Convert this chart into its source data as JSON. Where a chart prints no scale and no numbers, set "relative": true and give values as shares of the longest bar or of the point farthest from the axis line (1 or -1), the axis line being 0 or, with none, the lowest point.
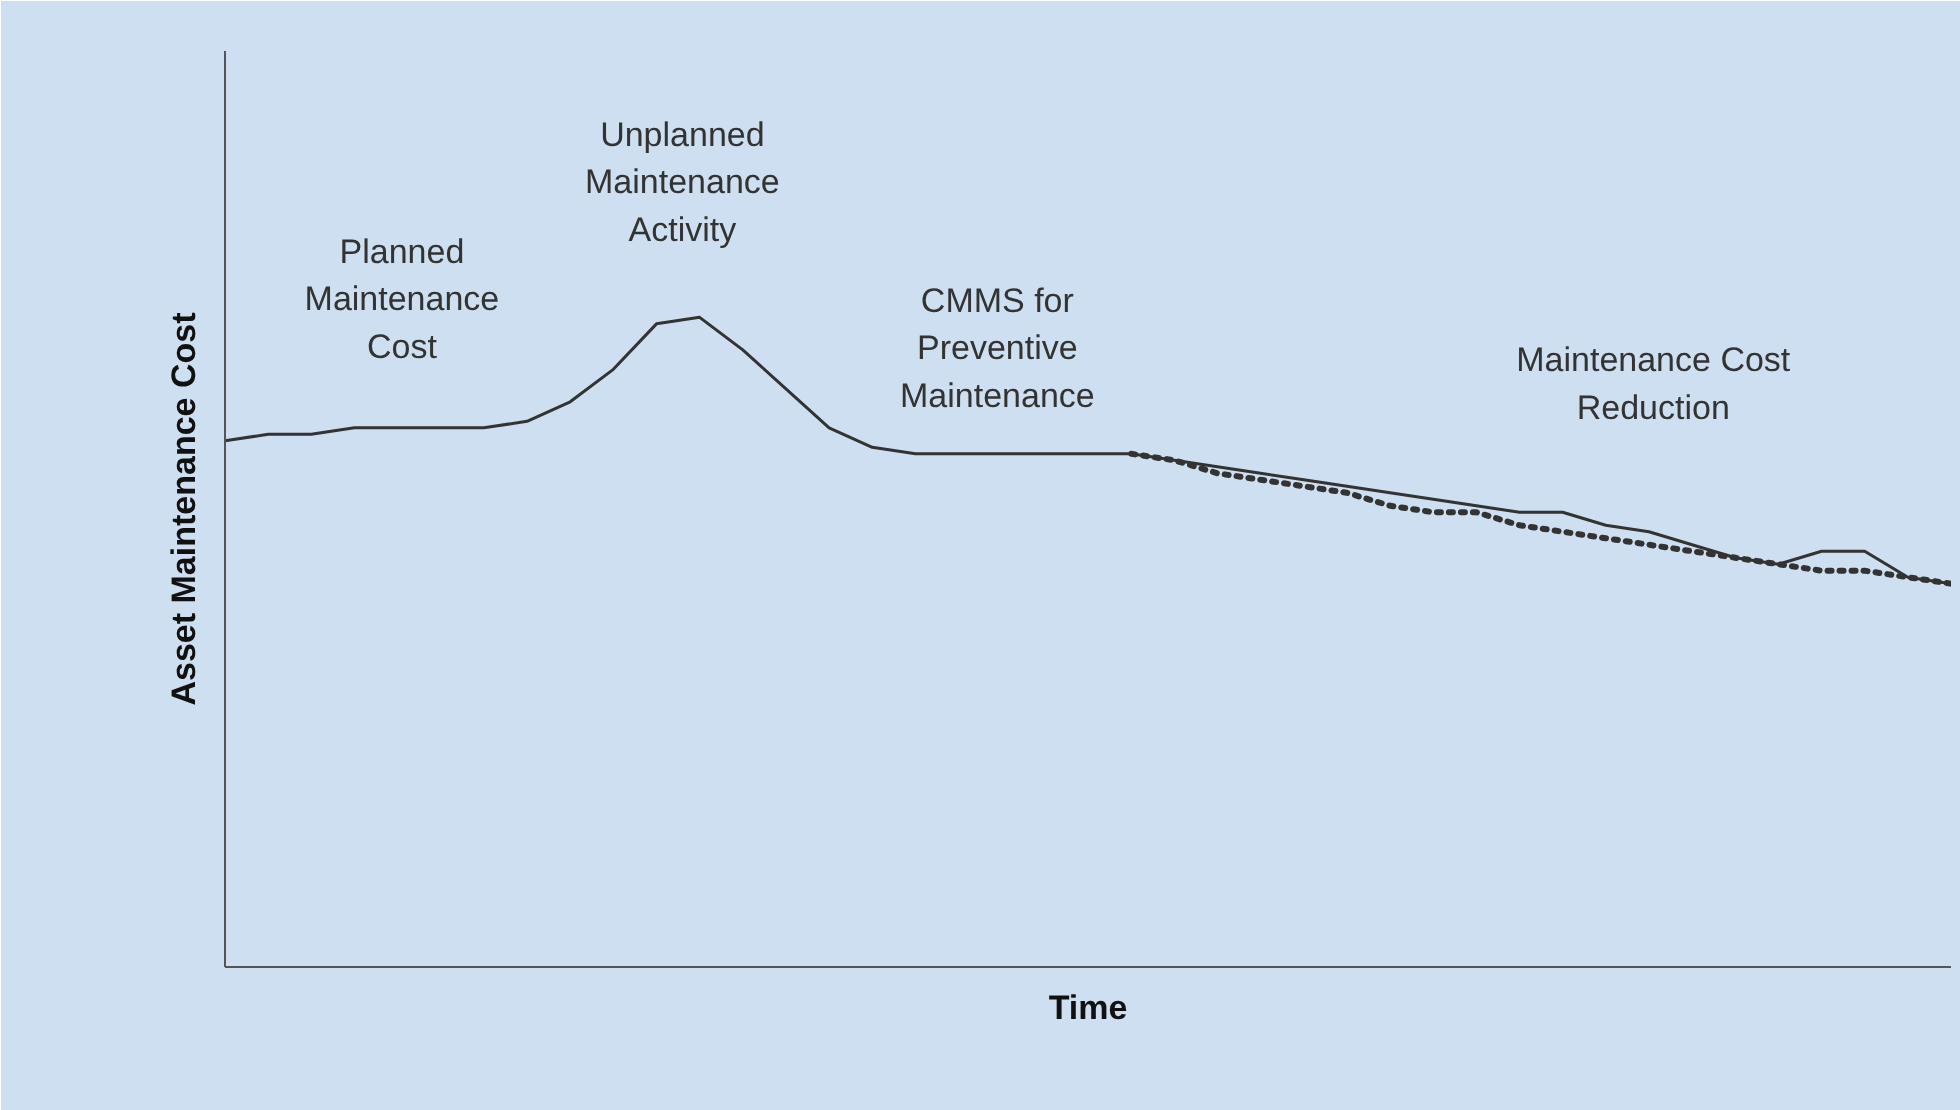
{
  "chart_data": {
    "type": "line",
    "relative": true,
    "xlabel": "Time",
    "ylabel": "Asset Maintenance Cost",
    "grid": false,
    "marker": "none",
    "categories": [
      null,
      null,
      null,
      null,
      null,
      null,
      null,
      null,
      null,
      null,
      null,
      null,
      null,
      null,
      null,
      null,
      null,
      null,
      null,
      null,
      null,
      null,
      null,
      null,
      null,
      null,
      null,
      null,
      null,
      null,
      null,
      null,
      null,
      null,
      null,
      null,
      null,
      null,
      null,
      null,
      null
    ],
    "series": [
      {
        "color": "#333333",
        "line_style": "solid",
        "values": [
          0.81,
          0.82,
          0.82,
          0.83,
          0.83,
          0.83,
          0.83,
          0.84,
          0.87,
          0.92,
          0.99,
          1.0,
          0.95,
          0.89,
          0.83,
          0.8,
          0.79,
          0.79,
          0.79,
          0.79,
          0.79,
          0.79,
          0.78,
          0.77,
          0.76,
          0.75,
          0.74,
          0.73,
          0.72,
          0.71,
          0.7,
          0.7,
          0.68,
          0.67,
          0.65,
          0.63,
          0.62,
          0.64,
          0.64,
          0.6,
          0.59
        ]
      },
      {
        "color": "#333333",
        "line_style": "dotted",
        "values": [
          null,
          null,
          null,
          null,
          null,
          null,
          null,
          null,
          null,
          null,
          null,
          null,
          null,
          null,
          null,
          null,
          null,
          null,
          null,
          null,
          null,
          0.79,
          0.78,
          0.76,
          0.75,
          0.74,
          0.73,
          0.71,
          0.7,
          0.7,
          0.68,
          0.67,
          0.66,
          0.65,
          0.64,
          0.63,
          0.62,
          0.61,
          0.61,
          0.6,
          0.59
        ]
      }
    ],
    "annotations": [
      "Planned\nMaintenance\nCost",
      "Unplanned\nMaintenance\nActivity",
      "CMMS for\nPreventive\nMaintenance",
      "Maintenance Cost\nReduction"
    ]
  }
}
